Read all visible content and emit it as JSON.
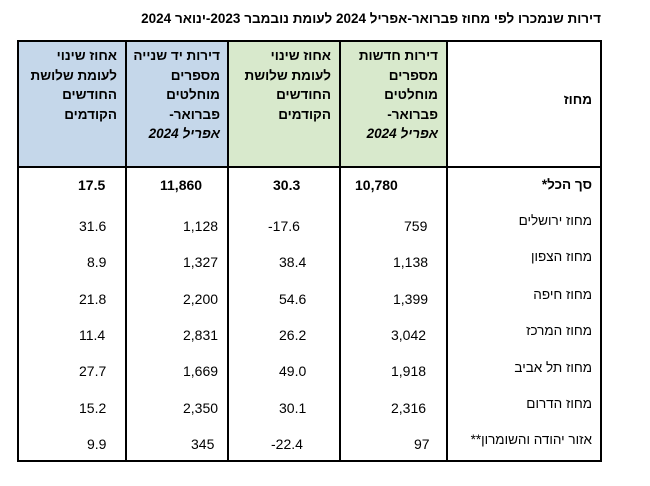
{
  "title": "דירות שנמכרו לפי מחוז פברואר-אפריל  2024 לעומת נובמבר 2023-ינואר 2024",
  "header": {
    "district": "מחוז",
    "new_apts": "דירות חדשות מספרים מוחלטים פברואר-",
    "new_apts_year": "אפריל 2024",
    "new_change": "אחוז שינוי לעומת שלושת החודשים הקודמים",
    "used_apts": "דירות יד שנייה מספרים מוחלטים פברואר-",
    "used_apts_year": "אפריל 2024",
    "used_change": "אחוז שינוי לעומת שלושת החודשים הקודמים"
  },
  "rows": [
    {
      "district": "סך הכל*",
      "new": "10,780",
      "new_change": "30.3",
      "used": "11,860",
      "used_change": "17.5"
    },
    {
      "district": "מחוז ירושלים",
      "new": "759",
      "new_change": "-17.6",
      "used": "1,128",
      "used_change": "31.6"
    },
    {
      "district": "מחוז הצפון",
      "new": "1,138",
      "new_change": "38.4",
      "used": "1,327",
      "used_change": "8.9"
    },
    {
      "district": "מחוז חיפה",
      "new": "1,399",
      "new_change": "54.6",
      "used": "2,200",
      "used_change": "21.8"
    },
    {
      "district": "מחוז המרכז",
      "new": "3,042",
      "new_change": "26.2",
      "used": "2,831",
      "used_change": "11.4"
    },
    {
      "district": "מחוז תל אביב",
      "new": "1,918",
      "new_change": "49.0",
      "used": "1,669",
      "used_change": "27.7"
    },
    {
      "district": "מחוז הדרום",
      "new": "2,316",
      "new_change": "30.1",
      "used": "2,350",
      "used_change": "15.2"
    },
    {
      "district": "אזור יהודה והשומרון**",
      "new": "97",
      "new_change": "-22.4",
      "used": "345",
      "used_change": "9.9"
    }
  ]
}
